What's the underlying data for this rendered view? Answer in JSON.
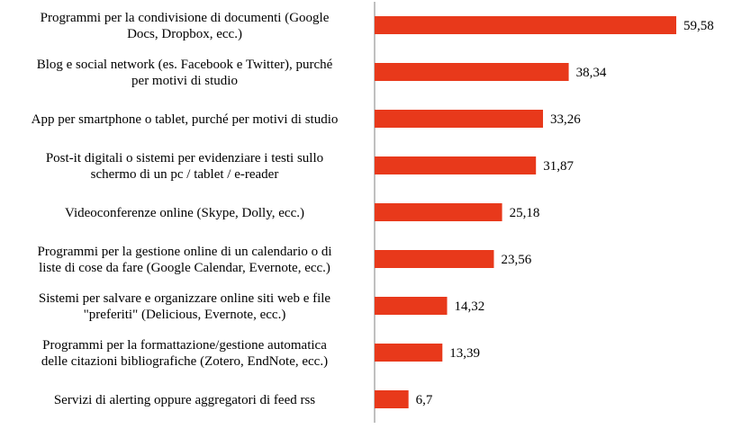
{
  "chart_data": {
    "type": "bar",
    "orientation": "horizontal",
    "title": "",
    "xlabel": "",
    "ylabel": "",
    "grid": false,
    "legend": "none",
    "xlim": [
      0,
      60
    ],
    "bar_color": "#E8391B",
    "categories": [
      [
        "Programmi per la condivisione di documenti (Google",
        "Docs, Dropbox, ecc.)"
      ],
      [
        "Blog e social network (es. Facebook e Twitter), purché",
        "per motivi di studio"
      ],
      [
        "App per smartphone o tablet, purché per motivi di studio"
      ],
      [
        "Post-it digitali o sistemi per evidenziare i testi sullo",
        "schermo di un pc / tablet / e-reader"
      ],
      [
        "Videoconferenze online (Skype, Dolly, ecc.)"
      ],
      [
        "Programmi per la gestione online di un calendario o di",
        "liste di cose da fare (Google Calendar, Evernote, ecc.)"
      ],
      [
        "Sistemi per salvare e organizzare online siti web e file",
        "\"preferiti\" (Delicious, Evernote, ecc.)"
      ],
      [
        "Programmi per la formattazione/gestione automatica",
        "delle citazioni bibliografiche (Zotero, EndNote, ecc.)"
      ],
      [
        "Servizi di alerting oppure aggregatori di feed rss"
      ]
    ],
    "values": [
      59.58,
      38.34,
      33.26,
      31.87,
      25.18,
      23.56,
      14.32,
      13.39,
      6.7
    ],
    "value_labels": [
      "59,58",
      "38,34",
      "33,26",
      "31,87",
      "25,18",
      "23,56",
      "14,32",
      "13,39",
      "6,7"
    ]
  }
}
